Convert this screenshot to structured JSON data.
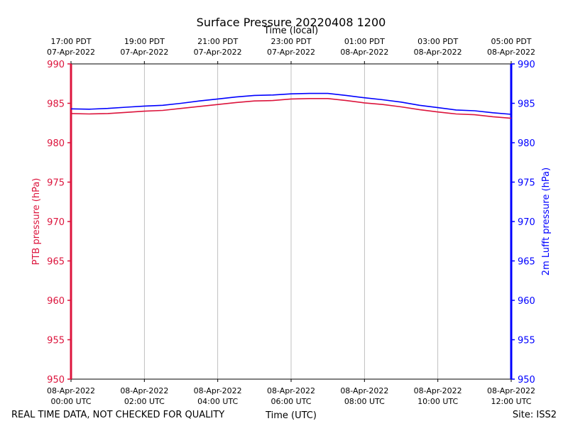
{
  "chart_data": {
    "type": "line",
    "title": "Surface Pressure 20220408 1200",
    "xlabel_bottom": "Time (UTC)",
    "xlabel_top": "Time (local)",
    "ylabel_left": "PTB pressure (hPa)",
    "ylabel_right": "2m Lufft pressure (hPa)",
    "ylim": [
      950,
      990
    ],
    "xlim_hours": [
      0,
      12
    ],
    "y_ticks": [
      950,
      955,
      960,
      965,
      970,
      975,
      980,
      985,
      990
    ],
    "x_ticks_bottom": [
      {
        "hour": 0,
        "line1": "08-Apr-2022",
        "line2": "00:00 UTC"
      },
      {
        "hour": 2,
        "line1": "08-Apr-2022",
        "line2": "02:00 UTC"
      },
      {
        "hour": 4,
        "line1": "08-Apr-2022",
        "line2": "04:00 UTC"
      },
      {
        "hour": 6,
        "line1": "08-Apr-2022",
        "line2": "06:00 UTC"
      },
      {
        "hour": 8,
        "line1": "08-Apr-2022",
        "line2": "08:00 UTC"
      },
      {
        "hour": 10,
        "line1": "08-Apr-2022",
        "line2": "10:00 UTC"
      },
      {
        "hour": 12,
        "line1": "08-Apr-2022",
        "line2": "12:00 UTC"
      }
    ],
    "x_ticks_top": [
      {
        "hour": 0,
        "line1": "17:00 PDT",
        "line2": "07-Apr-2022"
      },
      {
        "hour": 2,
        "line1": "19:00 PDT",
        "line2": "07-Apr-2022"
      },
      {
        "hour": 4,
        "line1": "21:00 PDT",
        "line2": "07-Apr-2022"
      },
      {
        "hour": 6,
        "line1": "23:00 PDT",
        "line2": "07-Apr-2022"
      },
      {
        "hour": 8,
        "line1": "01:00 PDT",
        "line2": "08-Apr-2022"
      },
      {
        "hour": 10,
        "line1": "03:00 PDT",
        "line2": "08-Apr-2022"
      },
      {
        "hour": 12,
        "line1": "05:00 PDT",
        "line2": "08-Apr-2022"
      }
    ],
    "series": [
      {
        "name": "PTB pressure",
        "axis": "left",
        "color": "#dc143c",
        "x": [
          0,
          0.5,
          1,
          1.5,
          2,
          2.5,
          3,
          3.5,
          4,
          4.5,
          5,
          5.5,
          6,
          6.5,
          7,
          7.5,
          8,
          8.5,
          9,
          9.5,
          10,
          10.5,
          11,
          11.5,
          12
        ],
        "values": [
          983.7,
          983.65,
          983.7,
          983.85,
          984.0,
          984.1,
          984.35,
          984.6,
          984.85,
          985.1,
          985.3,
          985.35,
          985.55,
          985.6,
          985.6,
          985.35,
          985.05,
          984.85,
          984.55,
          984.2,
          983.9,
          983.65,
          983.55,
          983.3,
          983.1
        ]
      },
      {
        "name": "2m Lufft pressure",
        "axis": "right",
        "color": "#0000ff",
        "x": [
          0,
          0.5,
          1,
          1.5,
          2,
          2.5,
          3,
          3.5,
          4,
          4.5,
          5,
          5.5,
          6,
          6.5,
          7,
          7.5,
          8,
          8.5,
          9,
          9.5,
          10,
          10.5,
          11,
          11.5,
          12
        ],
        "values": [
          984.3,
          984.25,
          984.35,
          984.5,
          984.65,
          984.75,
          985.0,
          985.3,
          985.55,
          985.8,
          986.0,
          986.05,
          986.2,
          986.25,
          986.25,
          986.0,
          985.7,
          985.45,
          985.15,
          984.75,
          984.45,
          984.15,
          984.05,
          983.8,
          983.6
        ]
      }
    ]
  },
  "footer": {
    "left": "REAL TIME DATA, NOT CHECKED FOR QUALITY",
    "right": "Site: ISS2"
  }
}
